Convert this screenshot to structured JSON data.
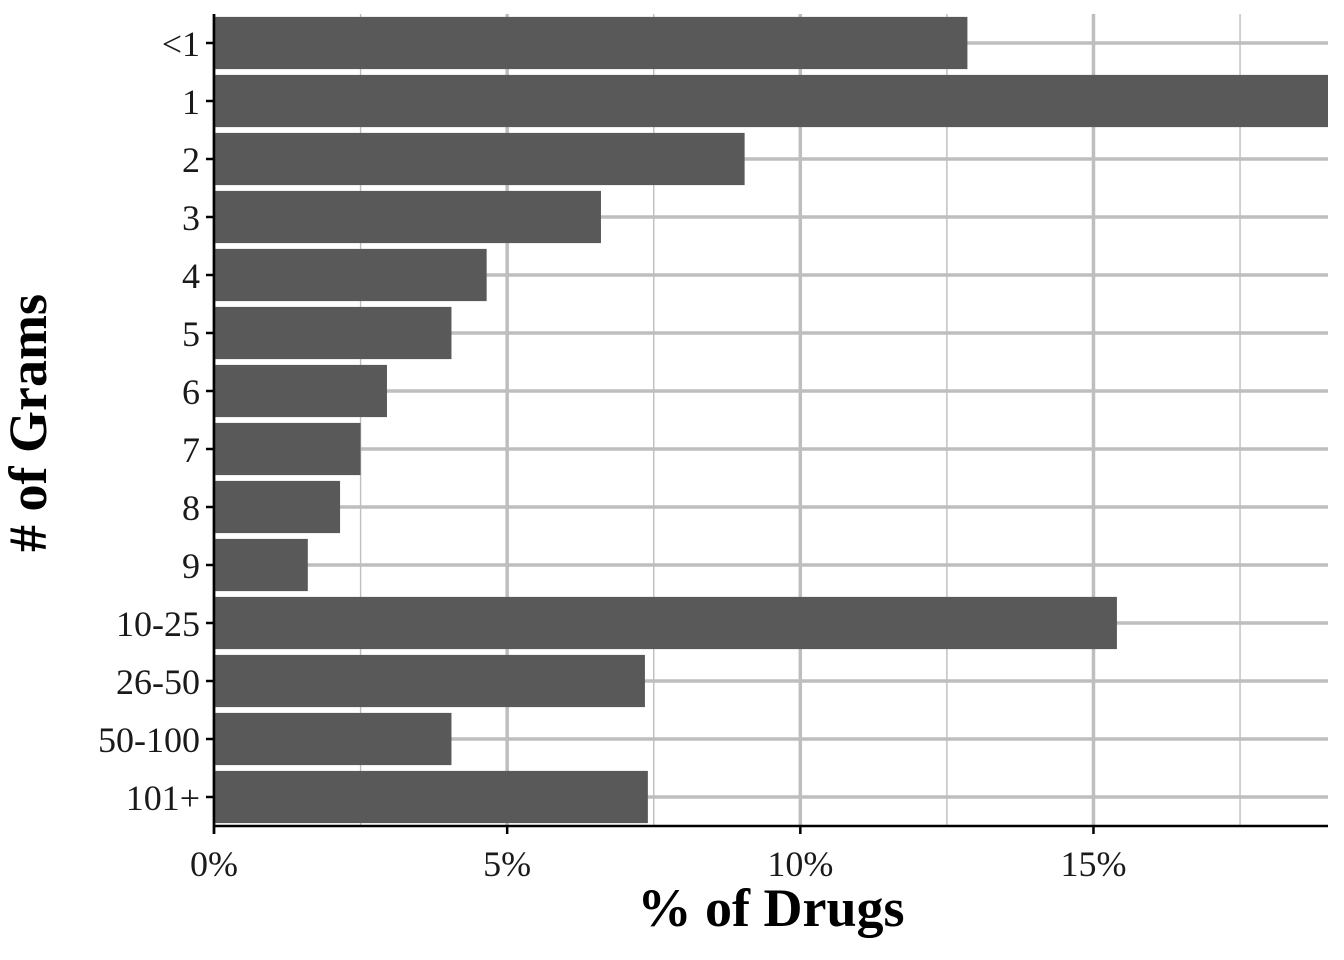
{
  "chart_data": {
    "type": "bar",
    "orientation": "horizontal",
    "categories": [
      "<1",
      "1",
      "2",
      "3",
      "4",
      "5",
      "6",
      "7",
      "8",
      "9",
      "10-25",
      "26-50",
      "50-100",
      "101+"
    ],
    "values": [
      12.85,
      19.0,
      9.05,
      6.6,
      4.65,
      4.05,
      2.95,
      2.5,
      2.15,
      1.6,
      15.4,
      7.35,
      4.05,
      7.4
    ],
    "xlabel": "% of Drugs",
    "ylabel": "# of Grams",
    "xlim": [
      0,
      19.0
    ],
    "x_ticks": [
      0,
      5,
      10,
      15
    ],
    "x_tick_labels": [
      "0%",
      "5%",
      "10%",
      "15%"
    ],
    "grid": true,
    "bar_color": "#595959",
    "grid_color": "#bebebe",
    "axis_color": "#000000"
  }
}
